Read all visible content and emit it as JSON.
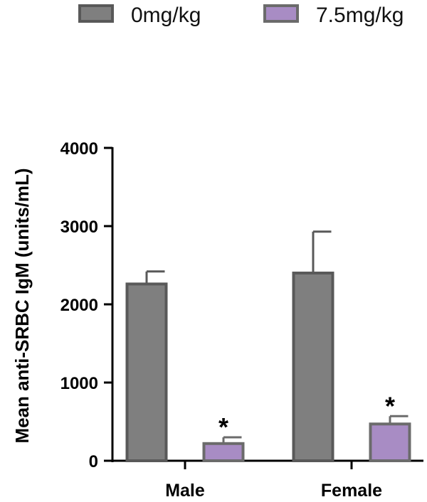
{
  "chart_data": {
    "type": "bar",
    "categories": [
      "Male",
      "Female"
    ],
    "series": [
      {
        "name": "0mg/kg",
        "values": [
          2260,
          2400
        ],
        "errors": [
          160,
          530
        ],
        "color": "#7f7f7f",
        "edge": "#595959"
      },
      {
        "name": "7.5mg/kg",
        "values": [
          220,
          470
        ],
        "errors": [
          80,
          100
        ],
        "color": "#a88cc4",
        "edge": "#6b6b6b"
      }
    ],
    "annotations": [
      {
        "category": "Male",
        "series": "7.5mg/kg",
        "text": "*"
      },
      {
        "category": "Female",
        "series": "7.5mg/kg",
        "text": "*"
      }
    ],
    "ylabel": "Mean anti-SRBC IgM (units/mL)",
    "xlabel": "",
    "title": "",
    "ylim": [
      0,
      4000
    ],
    "yticks": [
      "0",
      "1000",
      "2000",
      "3000",
      "4000"
    ],
    "grid": false,
    "legend_position": "top"
  }
}
